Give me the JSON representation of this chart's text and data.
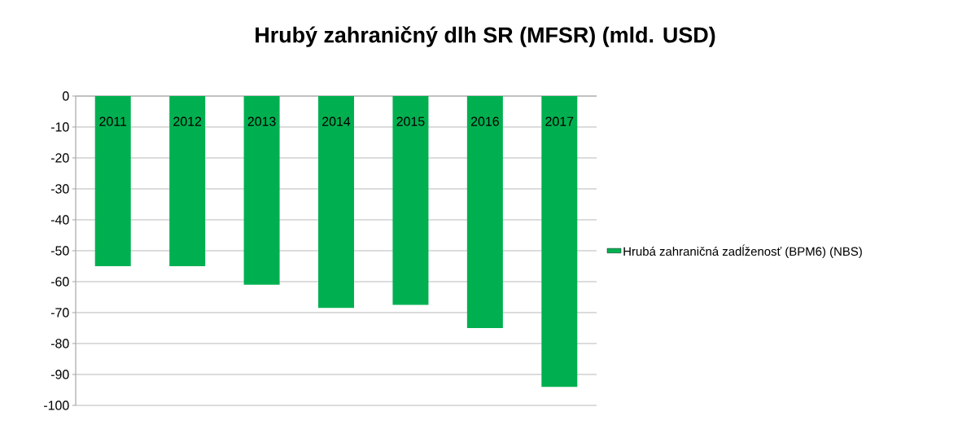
{
  "chart_data": {
    "type": "bar",
    "title": "Hrubý zahraničný dlh SR (MFSR) (mld. USD)",
    "categories": [
      "2011",
      "2012",
      "2013",
      "2014",
      "2015",
      "2016",
      "2017"
    ],
    "series": [
      {
        "name": "Hrubá zahraničná zadĺženosť (BPM6) (NBS)",
        "color": "#00b050",
        "values": [
          -55,
          -55,
          -61,
          -68.5,
          -67.5,
          -75,
          -94
        ]
      }
    ],
    "ylim": [
      -100,
      0
    ],
    "yticks": [
      -100,
      -90,
      -80,
      -70,
      -60,
      -50,
      -40,
      -30,
      -20,
      -10,
      0
    ],
    "grid": "y",
    "legend": "right"
  }
}
